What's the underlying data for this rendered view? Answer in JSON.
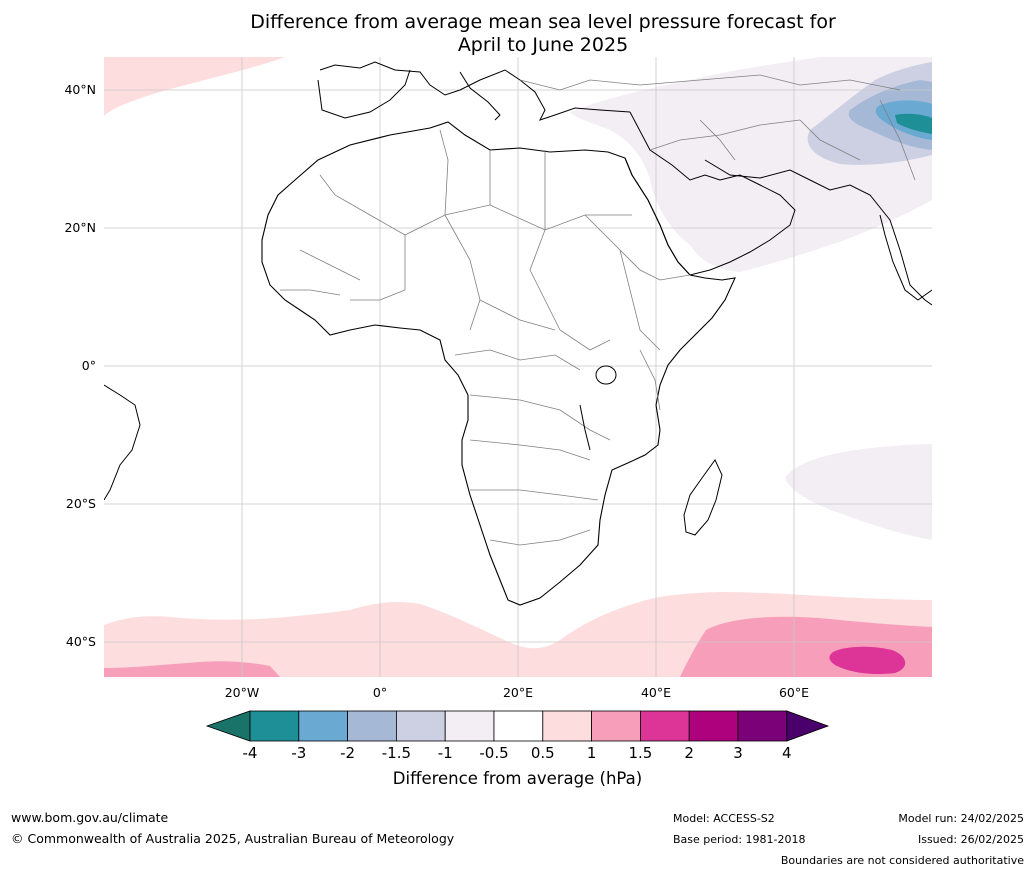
{
  "title": {
    "line1": "Difference from average mean sea level pressure forecast for",
    "line2": "April to June 2025"
  },
  "map": {
    "lat_labels": [
      "40°N",
      "20°N",
      "0°",
      "20°S",
      "40°S"
    ],
    "lon_labels": [
      "20°W",
      "0°",
      "20°E",
      "40°E",
      "60°E"
    ],
    "colors": {
      "ocean_neutral": "#ffffff",
      "coast": "#000000",
      "border": "#808080",
      "grid": "#c8c8c8"
    }
  },
  "colorbar": {
    "ticks": [
      "-4",
      "-3",
      "-2",
      "-1.5",
      "-1",
      "-0.5",
      "0.5",
      "1",
      "1.5",
      "2",
      "3",
      "4"
    ],
    "colors": [
      "#1a7368",
      "#1e8f96",
      "#69a9d2",
      "#a5b9d7",
      "#cdd0e3",
      "#f2eef4",
      "#ffffff",
      "#fddddd",
      "#f79fba",
      "#dd3497",
      "#ae017e",
      "#7a0177",
      "#49006a"
    ],
    "label": "Difference from average (hPa)"
  },
  "footer": {
    "url": "www.bom.gov.au/climate",
    "copyright": "© Commonwealth of Australia 2025, Australian Bureau of Meteorology",
    "model": "Model: ACCESS-S2",
    "base_period": "Base period: 1981-2018",
    "model_run": "Model run: 24/02/2025",
    "issued": "Issued: 26/02/2025",
    "disclaimer": "Boundaries are not considered authoritative"
  }
}
